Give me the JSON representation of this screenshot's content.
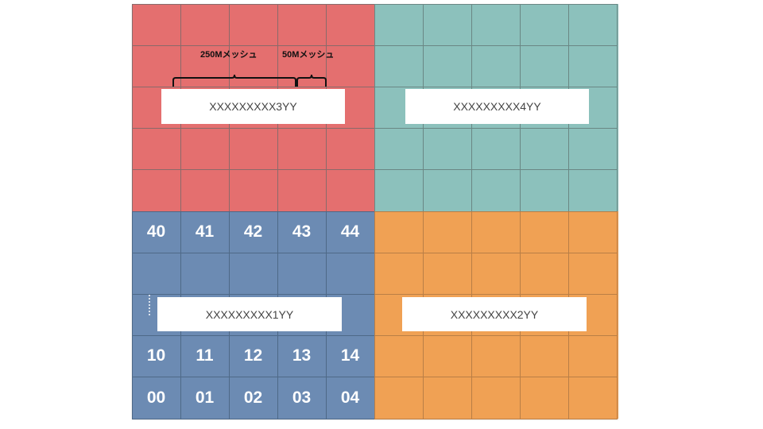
{
  "quadrants": [
    {
      "id": "3",
      "color": "#e46f6f",
      "grid_color": "#8a6a6a",
      "label": "XXXXXXXXX3YY"
    },
    {
      "id": "4",
      "color": "#8cc1bc",
      "grid_color": "#6a8784",
      "label": "XXXXXXXXX4YY"
    },
    {
      "id": "1",
      "color": "#6c8bb3",
      "grid_color": "#4e6987",
      "label": "XXXXXXXXX1YY"
    },
    {
      "id": "2",
      "color": "#f0a154",
      "grid_color": "#b97e46",
      "label": "XXXXXXXXX2YY"
    }
  ],
  "captions": {
    "mesh250": "250Mメッシュ",
    "mesh50": "50Mメッシュ"
  },
  "cell_codes": {
    "row40": [
      "40",
      "41",
      "42",
      "43",
      "44"
    ],
    "row10": [
      "10",
      "11",
      "12",
      "13",
      "14"
    ],
    "row00": [
      "00",
      "01",
      "02",
      "03",
      "04"
    ]
  }
}
